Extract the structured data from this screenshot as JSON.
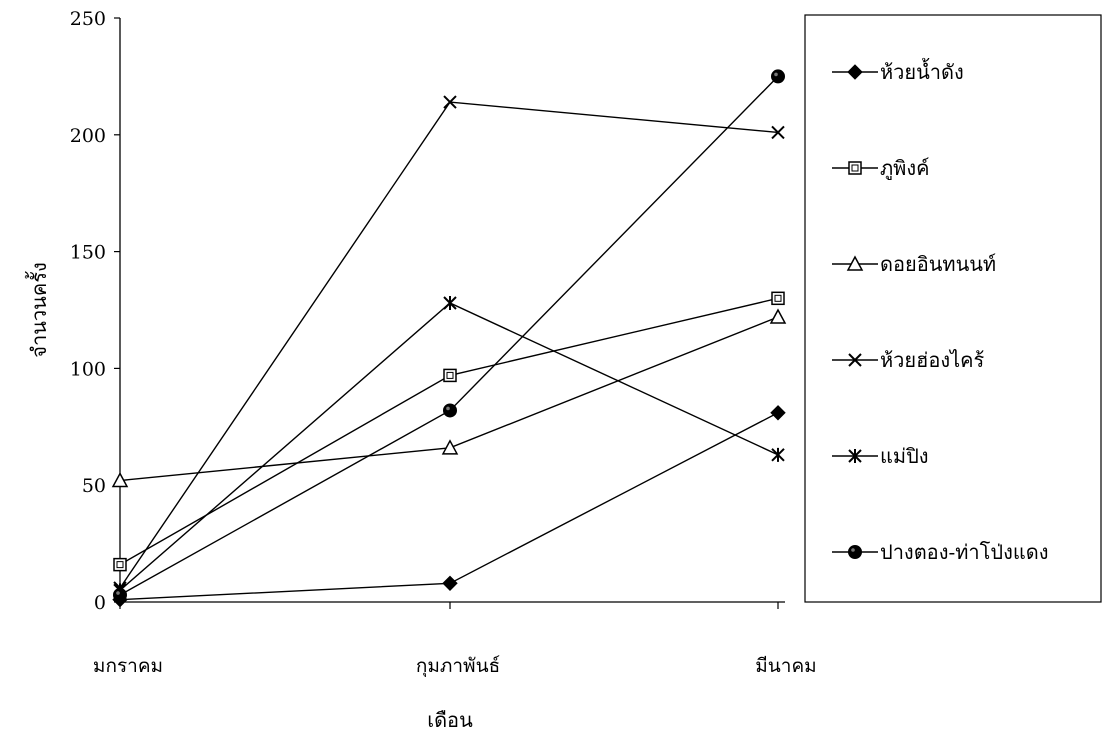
{
  "chart_data": {
    "type": "line",
    "title": "",
    "xlabel": "เดือน",
    "ylabel": "จำนวนครั้ง",
    "categories": [
      "มกราคม",
      "กุมภาพันธ์",
      "มีนาคม"
    ],
    "ylim": [
      0,
      250
    ],
    "yticks": [
      "0",
      "50",
      "100",
      "150",
      "200",
      "250"
    ],
    "grid": false,
    "legend_position": "right",
    "series": [
      {
        "name": "ห้วยน้ำดัง",
        "marker": "diamond-filled",
        "values": [
          1,
          8,
          81
        ]
      },
      {
        "name": "ภูพิงค์",
        "marker": "square-open",
        "values": [
          16,
          97,
          130
        ]
      },
      {
        "name": "ดอยอินทนนท์",
        "marker": "triangle-open",
        "values": [
          52,
          66,
          122
        ]
      },
      {
        "name": "ห้วยฮ่องไคร้",
        "marker": "x",
        "values": [
          6,
          214,
          201
        ]
      },
      {
        "name": "แม่ปิง",
        "marker": "asterisk",
        "values": [
          5,
          128,
          63
        ]
      },
      {
        "name": "ปางตอง-ท่าโป่งแดง",
        "marker": "circle-filled",
        "values": [
          3,
          82,
          225
        ]
      }
    ]
  }
}
